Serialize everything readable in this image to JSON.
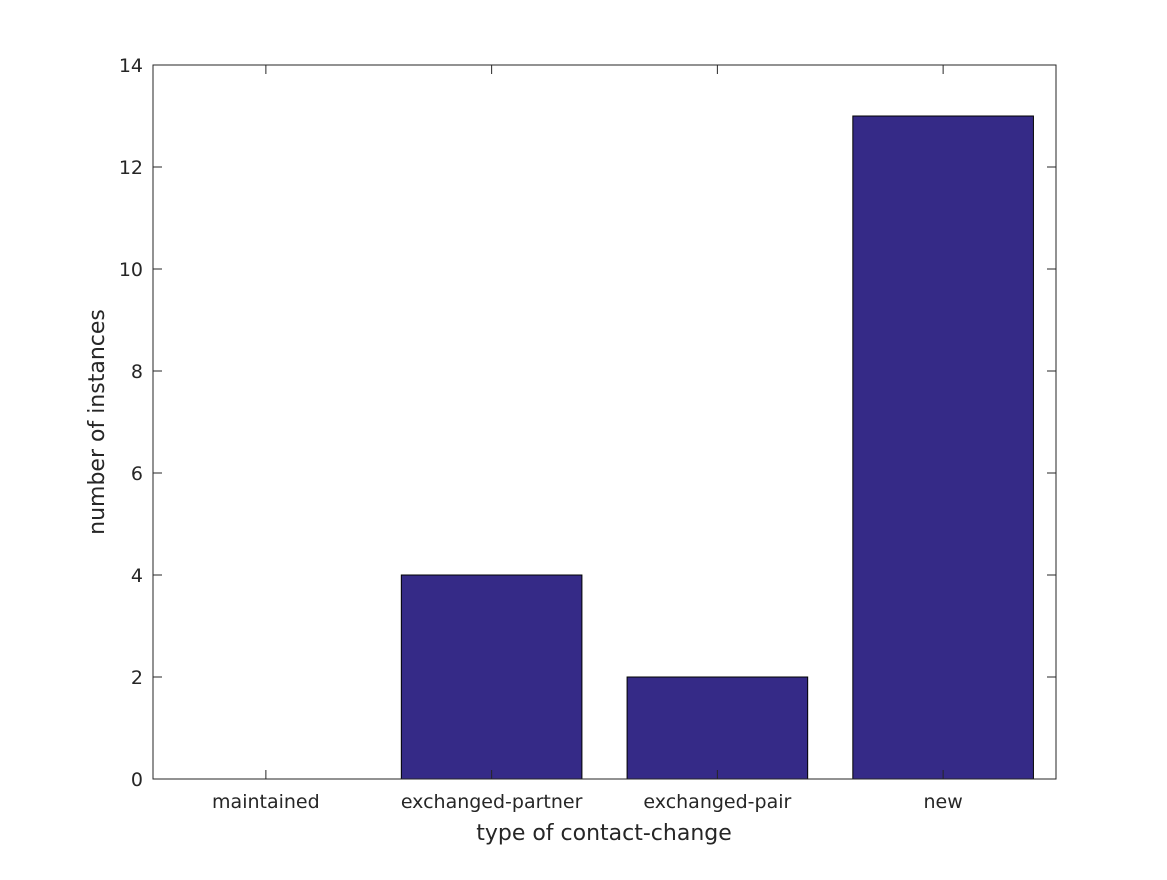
{
  "chart_data": {
    "type": "bar",
    "categories": [
      "maintained",
      "exchanged-partner",
      "exchanged-pair",
      "new"
    ],
    "values": [
      0,
      4,
      2,
      13
    ],
    "title": "",
    "xlabel": "type of contact-change",
    "ylabel": "number of instances",
    "ylim": [
      0,
      14
    ],
    "yticks": [
      0,
      2,
      4,
      6,
      8,
      10,
      12,
      14
    ],
    "grid": false,
    "bar_color": "#352a87",
    "bar_edge_color": "#000000",
    "axis_color": "#262626"
  }
}
